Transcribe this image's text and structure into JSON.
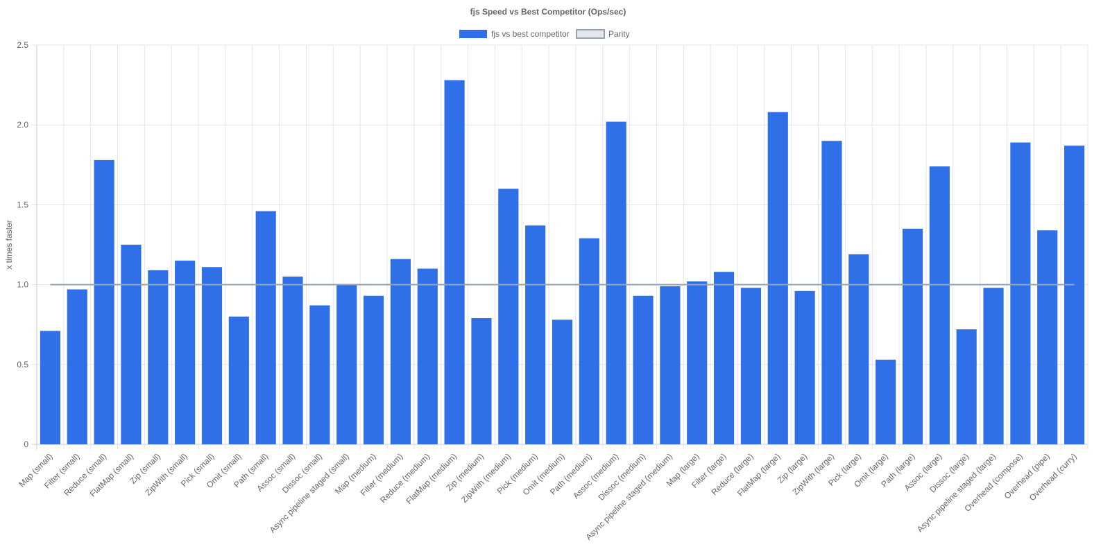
{
  "chart_data": {
    "type": "bar",
    "title": "fjs Speed vs Best Competitor (Ops/sec)",
    "xlabel": "",
    "ylabel": "x times faster",
    "ylim": [
      0,
      2.5
    ],
    "yticks": [
      "0",
      "0.5",
      "1.0",
      "1.5",
      "2.0",
      "2.5"
    ],
    "grid": true,
    "legend_position": "top",
    "categories": [
      "Map (small)",
      "Filter (small)",
      "Reduce (small)",
      "FlatMap (small)",
      "Zip (small)",
      "ZipWith (small)",
      "Pick (small)",
      "Omit (small)",
      "Path (small)",
      "Assoc (small)",
      "Dissoc (small)",
      "Async pipeline staged (small)",
      "Map (medium)",
      "Filter (medium)",
      "Reduce (medium)",
      "FlatMap (medium)",
      "Zip (medium)",
      "ZipWith (medium)",
      "Pick (medium)",
      "Omit (medium)",
      "Path (medium)",
      "Assoc (medium)",
      "Dissoc (medium)",
      "Async pipeline staged (medium)",
      "Map (large)",
      "Filter (large)",
      "Reduce (large)",
      "FlatMap (large)",
      "Zip (large)",
      "ZipWith (large)",
      "Pick (large)",
      "Omit (large)",
      "Path (large)",
      "Assoc (large)",
      "Dissoc (large)",
      "Async pipeline staged (large)",
      "Overhead (compose)",
      "Overhead (pipe)",
      "Overhead (curry)"
    ],
    "series": [
      {
        "name": "fjs vs best competitor",
        "type": "bar",
        "color": "#2f6fe8",
        "values": [
          0.71,
          0.97,
          1.78,
          1.25,
          1.09,
          1.15,
          1.11,
          0.8,
          1.46,
          1.05,
          0.87,
          1.0,
          0.93,
          1.16,
          1.1,
          2.28,
          0.79,
          1.6,
          1.37,
          0.78,
          1.29,
          2.02,
          0.93,
          0.99,
          1.02,
          1.08,
          0.98,
          2.08,
          0.96,
          1.9,
          1.19,
          0.53,
          1.35,
          1.74,
          0.72,
          0.98,
          1.89,
          1.34,
          1.87
        ]
      },
      {
        "name": "Parity",
        "type": "line",
        "color": "#94a3b8",
        "value": 1.0
      }
    ]
  }
}
